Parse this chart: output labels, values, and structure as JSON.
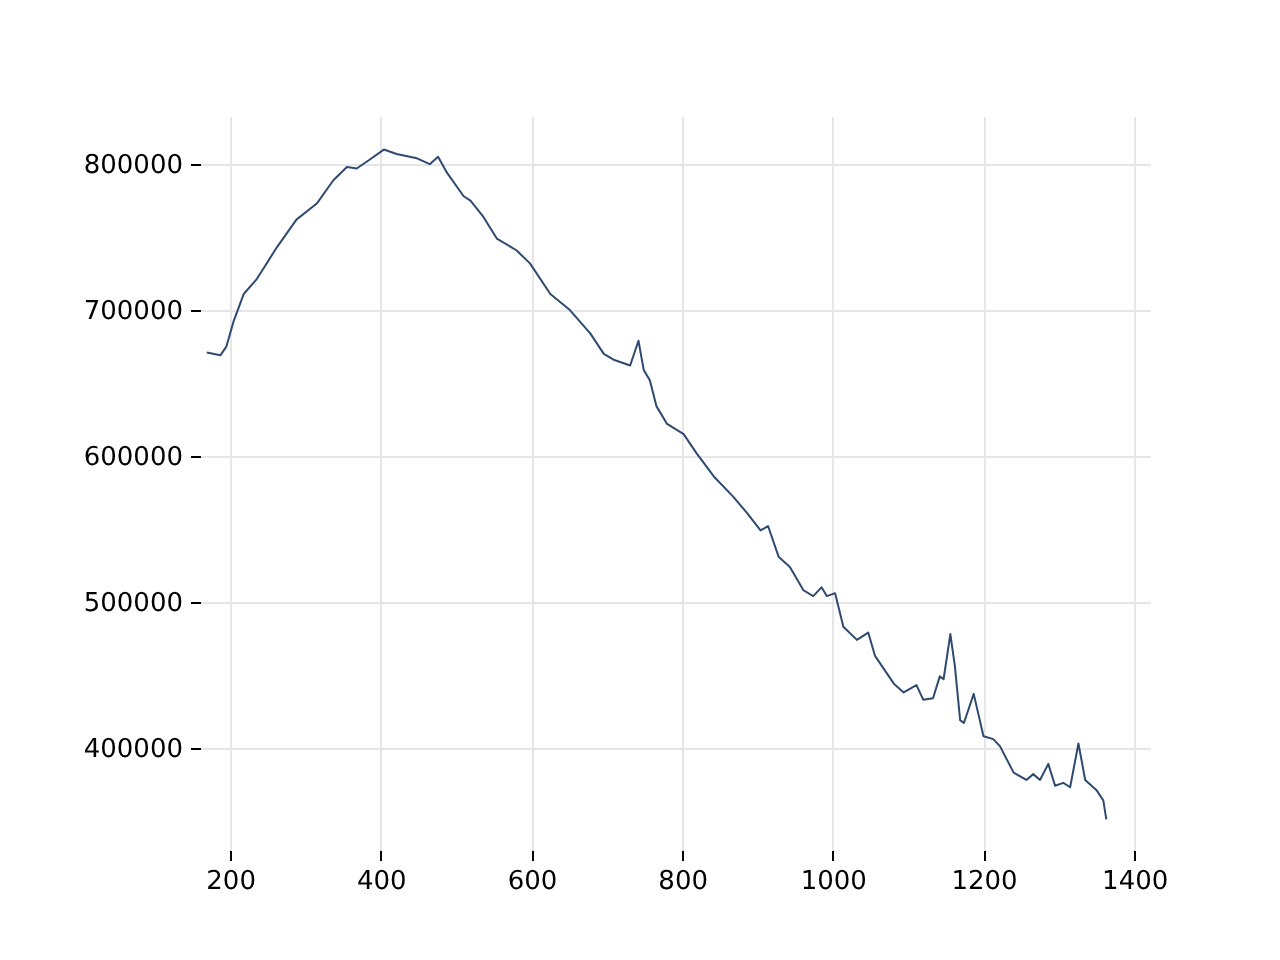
{
  "chart_data": {
    "type": "line",
    "x": [
      169,
      187,
      195,
      205,
      218,
      235,
      262,
      288,
      315,
      337,
      355,
      368,
      385,
      404,
      421,
      448,
      465,
      476,
      488,
      510,
      519,
      536,
      554,
      580,
      598,
      625,
      651,
      678,
      696,
      709,
      731,
      742,
      749,
      757,
      766,
      780,
      802,
      819,
      842,
      868,
      886,
      904,
      914,
      928,
      943,
      961,
      974,
      985,
      992,
      1003,
      1014,
      1032,
      1047,
      1056,
      1081,
      1094,
      1111,
      1120,
      1133,
      1142,
      1147,
      1156,
      1162,
      1169,
      1174,
      1187,
      1200,
      1213,
      1222,
      1240,
      1257,
      1266,
      1275,
      1286,
      1295,
      1306,
      1315,
      1326,
      1335,
      1350,
      1359,
      1363
    ],
    "series": [
      {
        "color": "#2e4a70",
        "values": [
          671000,
          669000,
          675000,
          693000,
          711000,
          721000,
          743000,
          762000,
          773000,
          789000,
          798000,
          797000,
          803000,
          810000,
          807000,
          804000,
          800000,
          805000,
          794000,
          778000,
          775000,
          764000,
          749000,
          741000,
          732000,
          711000,
          700000,
          684000,
          670000,
          666000,
          662000,
          679000,
          659000,
          652000,
          634000,
          622000,
          615000,
          602000,
          586000,
          572000,
          561000,
          549000,
          552000,
          531000,
          524000,
          508000,
          504000,
          510000,
          504000,
          506000,
          483000,
          474000,
          479000,
          463000,
          444000,
          438000,
          443000,
          433000,
          434000,
          449000,
          447000,
          478000,
          456000,
          419000,
          417000,
          437000,
          408000,
          406000,
          401000,
          383000,
          378000,
          382000,
          378000,
          389000,
          374000,
          376000,
          373000,
          403000,
          378000,
          371000,
          364000,
          351000
        ]
      }
    ],
    "xlim": [
      160,
      1421
    ],
    "xticks": [
      200,
      400,
      600,
      800,
      1000,
      1200,
      1400
    ],
    "ylim": [
      330000,
      833000
    ],
    "yticks": [
      400000,
      500000,
      600000,
      700000,
      800000
    ],
    "grid": true,
    "line_style": "solid"
  }
}
